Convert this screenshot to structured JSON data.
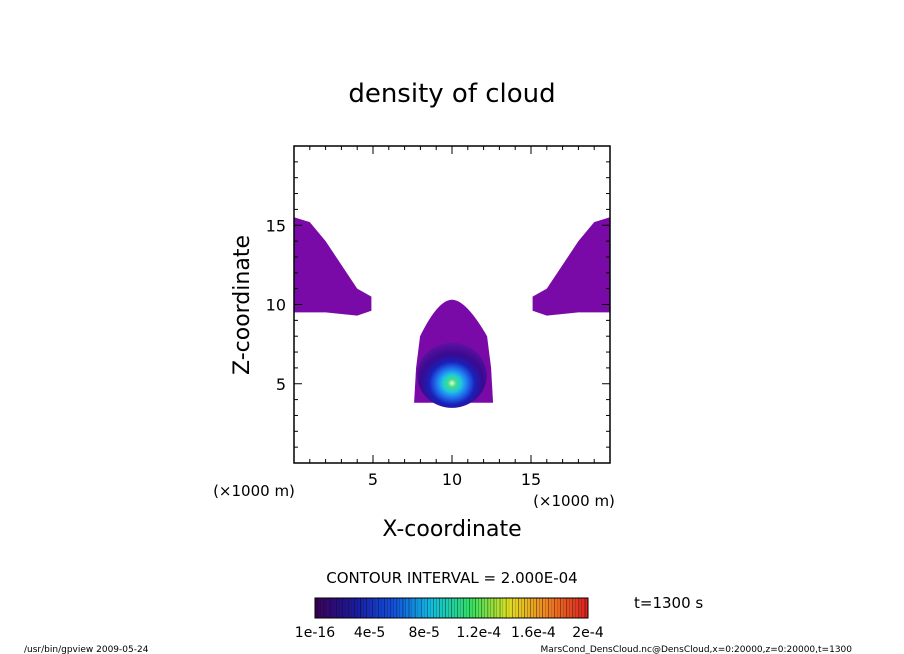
{
  "chart_data": {
    "type": "heatmap",
    "title": "density of cloud",
    "xlabel": "X-coordinate",
    "ylabel": "Z-coordinate",
    "x_unit": "(×1000 m)",
    "y_unit": "(×1000 m)",
    "xlim": [
      0,
      20
    ],
    "ylim": [
      0,
      20
    ],
    "x_ticks": [
      5,
      10,
      15
    ],
    "y_ticks": [
      5,
      10,
      15
    ],
    "x_tick_labels": [
      "5",
      "10",
      "15"
    ],
    "y_tick_labels": [
      "5",
      "10",
      "15"
    ],
    "contour_interval": "CONTOUR INTERVAL = 2.000E-04",
    "time_label": "t=1300 s",
    "colorbar": {
      "labels": [
        "1e-16",
        "4e-5",
        "8e-5",
        "1.2e-4",
        "1.6e-4",
        "2e-4"
      ],
      "min": 0,
      "max": 0.0002,
      "colors": [
        "#3a0058",
        "#1a1aa0",
        "#1050e0",
        "#10c0e0",
        "#30e060",
        "#e0e020",
        "#f08020",
        "#e02020"
      ]
    },
    "regions": [
      {
        "name": "upper-left plume",
        "polygon": [
          [
            0,
            15.5
          ],
          [
            1,
            15.2
          ],
          [
            2,
            14
          ],
          [
            3,
            12.5
          ],
          [
            4,
            11
          ],
          [
            4.9,
            10.5
          ],
          [
            4.9,
            9.6
          ],
          [
            4,
            9.3
          ],
          [
            3,
            9.4
          ],
          [
            2,
            9.5
          ],
          [
            0,
            9.5
          ]
        ],
        "value": 1e-16
      },
      {
        "name": "upper-right plume",
        "polygon": [
          [
            20,
            15.5
          ],
          [
            19,
            15.2
          ],
          [
            18,
            14
          ],
          [
            17,
            12.5
          ],
          [
            16,
            11
          ],
          [
            15.1,
            10.5
          ],
          [
            15.1,
            9.6
          ],
          [
            16,
            9.3
          ],
          [
            17,
            9.4
          ],
          [
            18,
            9.5
          ],
          [
            20,
            9.5
          ]
        ],
        "value": 1e-16
      },
      {
        "name": "central cloud",
        "center": [
          10,
          5.4
        ],
        "x_extent": [
          7.6,
          12.6
        ],
        "z_extent": [
          3.8,
          10.3
        ],
        "peak_value": 9e-05
      }
    ]
  },
  "footer": {
    "left": "/usr/bin/gpview   2009-05-24",
    "right": "MarsCond_DensCloud.nc@DensCloud,x=0:20000,z=0:20000,t=1300"
  }
}
